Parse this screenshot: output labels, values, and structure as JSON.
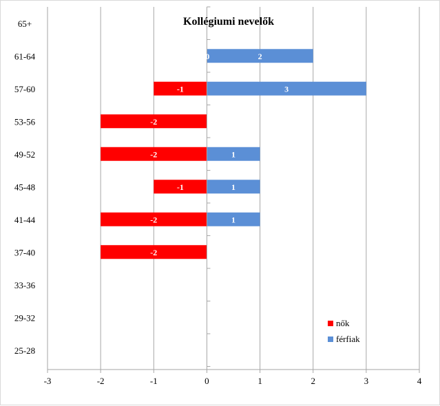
{
  "chart_data": {
    "type": "bar",
    "orientation": "horizontal",
    "title": "Kollégiumi nevelők",
    "categories": [
      "65+",
      "61-64",
      "57-60",
      "53-56",
      "49-52",
      "45-48",
      "41-44",
      "37-40",
      "33-36",
      "29-32",
      "25-28"
    ],
    "series": [
      {
        "name": "nők",
        "color": "#ff0000",
        "values": [
          null,
          null,
          -1,
          -2,
          -2,
          -1,
          -2,
          -2,
          null,
          null,
          null
        ]
      },
      {
        "name": "férfiak",
        "color": "#5b8fd6",
        "values": [
          null,
          2,
          3,
          null,
          1,
          1,
          1,
          null,
          null,
          null,
          null
        ]
      }
    ],
    "extra_labels": [
      {
        "category": "61-64",
        "text": "0"
      }
    ],
    "xlim": [
      -3,
      4
    ],
    "xticks": [
      "-3",
      "-2",
      "-1",
      "0",
      "1",
      "2",
      "3",
      "4"
    ],
    "grid": "vertical",
    "legend_position": "bottom-right"
  }
}
